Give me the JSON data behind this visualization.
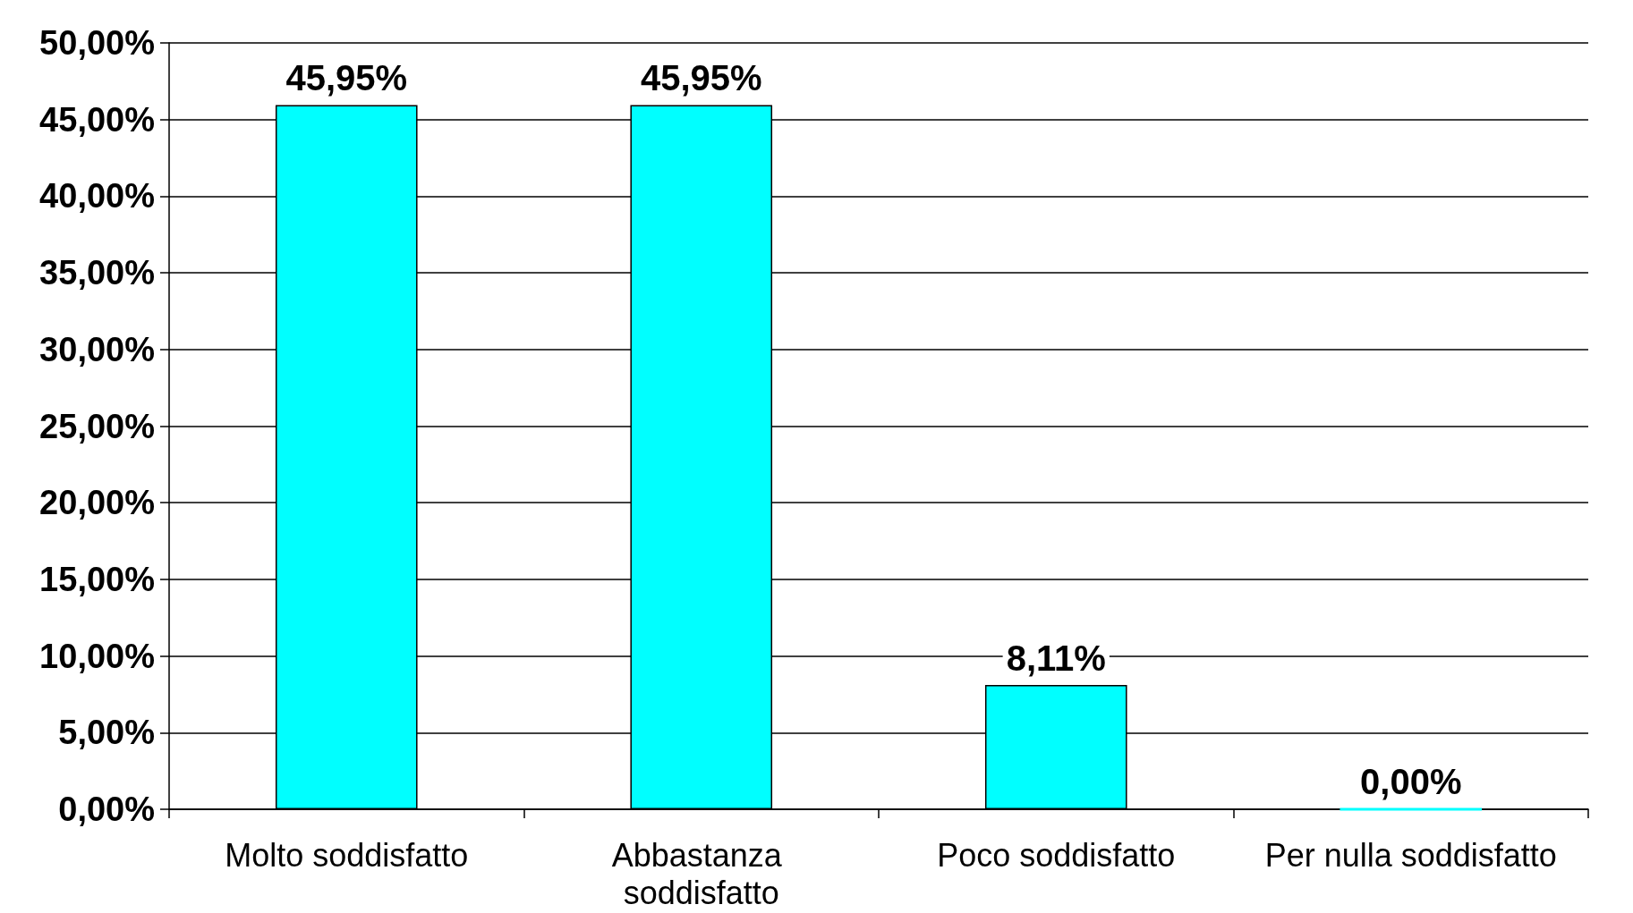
{
  "chart_data": {
    "type": "bar",
    "categories": [
      "Molto soddisfatto",
      "Abbastanza soddisfatto",
      "Poco soddisfatto",
      "Per nulla soddisfatto"
    ],
    "values": [
      45.95,
      45.95,
      8.11,
      0
    ],
    "color": "#00ffff",
    "value_labels": [
      "45,95%",
      "45,95%",
      "8,11%",
      "0,00%"
    ],
    "ylim": [
      0,
      50
    ],
    "yticks": [
      {
        "value": 0,
        "label": "0,00%"
      },
      {
        "value": 5,
        "label": "5,00%"
      },
      {
        "value": 10,
        "label": "10,00%"
      },
      {
        "value": 15,
        "label": "15,00%"
      },
      {
        "value": 20,
        "label": "20,00%"
      },
      {
        "value": 25,
        "label": "25,00%"
      },
      {
        "value": 30,
        "label": "30,00%"
      },
      {
        "value": 35,
        "label": "35,00%"
      },
      {
        "value": 40,
        "label": "40,00%"
      },
      {
        "value": 45,
        "label": "45,00%"
      },
      {
        "value": 50,
        "label": "50,00%"
      }
    ],
    "grid": "y"
  }
}
